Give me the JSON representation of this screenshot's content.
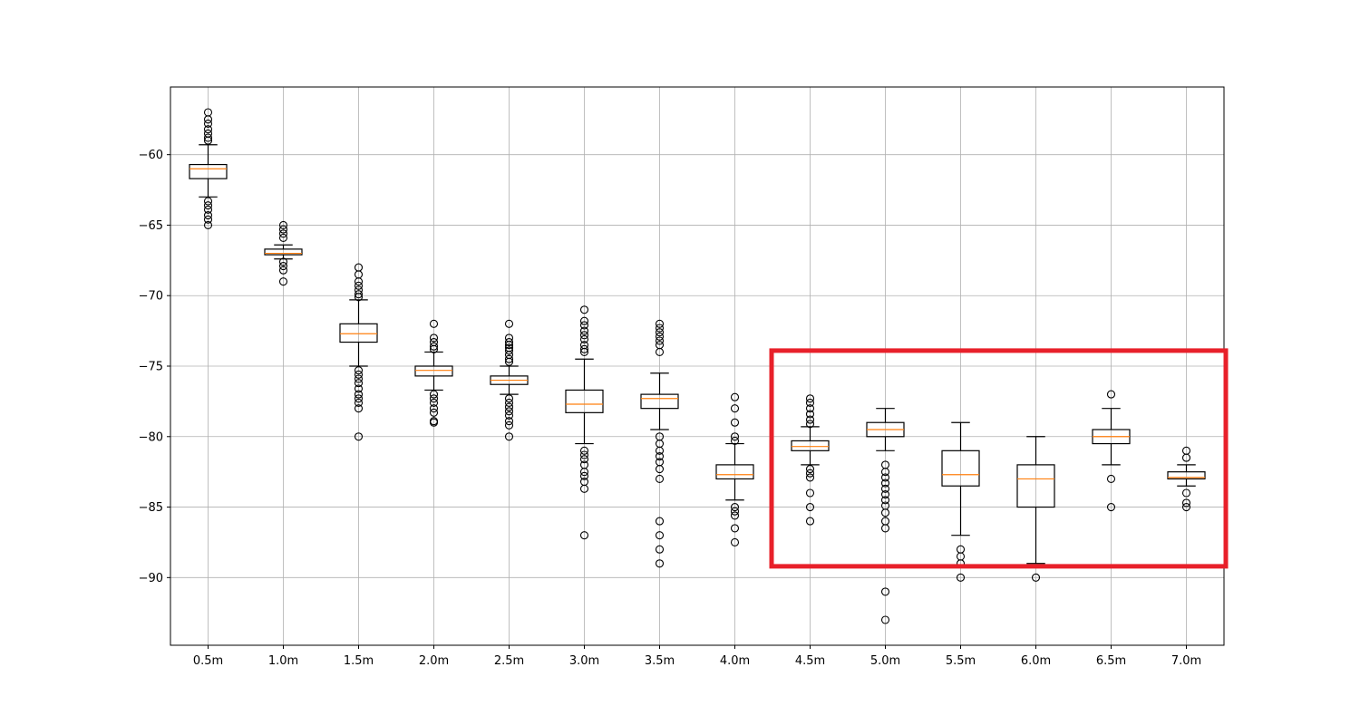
{
  "chart_data": {
    "type": "box",
    "title": "",
    "xlabel": "",
    "ylabel": "",
    "ylim": [
      -94.8,
      -55.2
    ],
    "yticks": [
      -60,
      -65,
      -70,
      -75,
      -80,
      -85,
      -90
    ],
    "ytick_labels": [
      "−60",
      "−65",
      "−70",
      "−75",
      "−80",
      "−85",
      "−90"
    ],
    "grid": true,
    "categories": [
      "0.5m",
      "1.0m",
      "1.5m",
      "2.0m",
      "2.5m",
      "3.0m",
      "3.5m",
      "4.0m",
      "4.5m",
      "5.0m",
      "5.5m",
      "6.0m",
      "6.5m",
      "7.0m"
    ],
    "boxes": [
      {
        "whislo": -63.0,
        "q1": -61.7,
        "med": -61.0,
        "q3": -60.7,
        "whishi": -59.3,
        "fliers": [
          -57.0,
          -57.5,
          -57.8,
          -58.2,
          -58.5,
          -58.8,
          -59.0,
          -63.3,
          -63.6,
          -63.9,
          -64.3,
          -64.6,
          -65.0
        ]
      },
      {
        "whislo": -67.4,
        "q1": -67.1,
        "med": -67.0,
        "q3": -66.7,
        "whishi": -66.4,
        "fliers": [
          -65.0,
          -65.3,
          -65.6,
          -65.9,
          -67.6,
          -67.9,
          -68.2,
          -69.0
        ]
      },
      {
        "whislo": -75.0,
        "q1": -73.3,
        "med": -72.7,
        "q3": -72.0,
        "whishi": -70.3,
        "fliers": [
          -68.0,
          -68.5,
          -69.0,
          -69.3,
          -69.6,
          -69.9,
          -70.1,
          -75.3,
          -75.6,
          -75.9,
          -76.2,
          -76.6,
          -77.0,
          -77.3,
          -77.6,
          -78.0,
          -80.0
        ]
      },
      {
        "whislo": -76.7,
        "q1": -75.7,
        "med": -75.3,
        "q3": -75.0,
        "whishi": -74.0,
        "fliers": [
          -72.0,
          -73.0,
          -73.3,
          -73.6,
          -73.8,
          -77.0,
          -77.3,
          -77.6,
          -78.0,
          -78.3,
          -78.9,
          -79.0
        ]
      },
      {
        "whislo": -77.0,
        "q1": -76.3,
        "med": -76.0,
        "q3": -75.7,
        "whishi": -75.0,
        "fliers": [
          -72.0,
          -73.0,
          -73.3,
          -73.5,
          -73.7,
          -73.9,
          -74.2,
          -74.5,
          -74.7,
          -77.3,
          -77.6,
          -77.9,
          -78.2,
          -78.5,
          -78.9,
          -79.2,
          -80.0
        ]
      },
      {
        "whislo": -80.5,
        "q1": -78.3,
        "med": -77.7,
        "q3": -76.7,
        "whishi": -74.5,
        "fliers": [
          -71.0,
          -71.8,
          -72.1,
          -72.5,
          -72.8,
          -73.1,
          -73.5,
          -73.8,
          -74.0,
          -81.0,
          -81.3,
          -81.6,
          -82.0,
          -82.5,
          -82.8,
          -83.2,
          -83.7,
          -87.0
        ]
      },
      {
        "whislo": -79.5,
        "q1": -78.0,
        "med": -77.3,
        "q3": -77.0,
        "whishi": -75.5,
        "fliers": [
          -72.0,
          -72.3,
          -72.6,
          -72.9,
          -73.2,
          -73.5,
          -74.0,
          -80.0,
          -80.5,
          -81.0,
          -81.4,
          -81.8,
          -82.3,
          -83.0,
          -86.0,
          -87.0,
          -88.0,
          -89.0
        ]
      },
      {
        "whislo": -84.5,
        "q1": -83.0,
        "med": -82.7,
        "q3": -82.0,
        "whishi": -80.5,
        "fliers": [
          -77.2,
          -78.0,
          -79.0,
          -80.0,
          -80.3,
          -85.0,
          -85.3,
          -85.6,
          -86.5,
          -87.5
        ]
      },
      {
        "whislo": -82.0,
        "q1": -81.0,
        "med": -80.7,
        "q3": -80.3,
        "whishi": -79.3,
        "fliers": [
          -77.3,
          -77.6,
          -78.0,
          -78.4,
          -78.8,
          -79.1,
          -82.3,
          -82.6,
          -82.9,
          -84.0,
          -85.0,
          -86.0
        ]
      },
      {
        "whislo": -81.0,
        "q1": -80.0,
        "med": -79.5,
        "q3": -79.0,
        "whishi": -78.0,
        "fliers": [
          -82.0,
          -82.5,
          -82.9,
          -83.3,
          -83.7,
          -84.1,
          -84.5,
          -84.9,
          -85.4,
          -86.0,
          -86.5,
          -91.0,
          -93.0
        ]
      },
      {
        "whislo": -87.0,
        "q1": -83.5,
        "med": -82.7,
        "q3": -81.0,
        "whishi": -79.0,
        "fliers": [
          -88.0,
          -88.5,
          -89.0,
          -90.0
        ]
      },
      {
        "whislo": -89.0,
        "q1": -85.0,
        "med": -83.0,
        "q3": -82.0,
        "whishi": -80.0,
        "fliers": [
          -90.0
        ]
      },
      {
        "whislo": -82.0,
        "q1": -80.5,
        "med": -80.0,
        "q3": -79.5,
        "whishi": -78.0,
        "fliers": [
          -77.0,
          -83.0,
          -85.0
        ]
      },
      {
        "whislo": -83.5,
        "q1": -83.0,
        "med": -82.9,
        "q3": -82.5,
        "whishi": -82.0,
        "fliers": [
          -81.0,
          -81.5,
          -84.0,
          -84.7,
          -85.0
        ]
      }
    ],
    "colors": {
      "box": "#000000",
      "median": "#ff7f0e",
      "grid": "#b0b0b0",
      "highlight": "#e8202a"
    },
    "highlight": {
      "categories": [
        "4.5m",
        "5.0m",
        "5.5m",
        "6.0m",
        "6.5m",
        "7.0m"
      ],
      "ylim": [
        -89.2,
        -73.9
      ]
    }
  }
}
